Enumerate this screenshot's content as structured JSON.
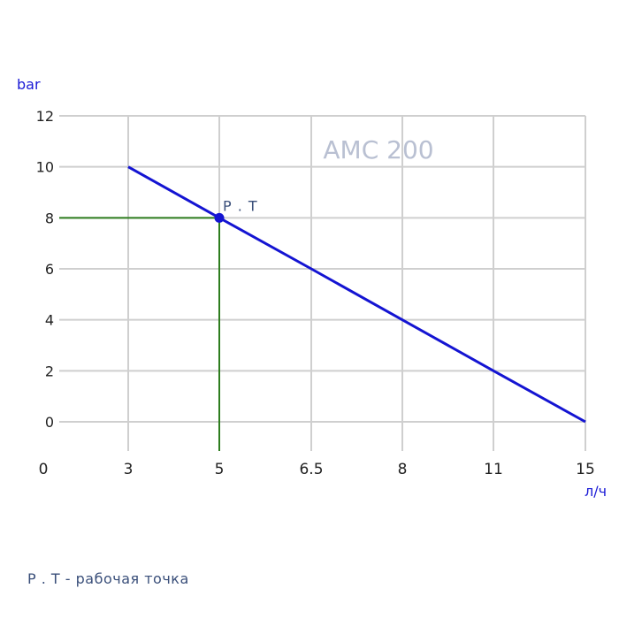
{
  "chart_data": {
    "type": "line",
    "title": "",
    "watermark": "AMC 200",
    "xlabel": "л/ч",
    "ylabel": "bar",
    "x_ticks": [
      "0",
      "3",
      "5",
      "6.5",
      "8",
      "11",
      "15"
    ],
    "y_ticks": [
      "0",
      "2",
      "4",
      "6",
      "8",
      "10",
      "12"
    ],
    "ylim": [
      0,
      12
    ],
    "grid": true,
    "series": [
      {
        "x": [
          "3",
          "5",
          "6.5",
          "8",
          "11",
          "15"
        ],
        "values": [
          10,
          8,
          6,
          4,
          2,
          0
        ],
        "color": "#1414d2"
      }
    ],
    "operating_point": {
      "label": "P . T",
      "x": "5",
      "y": 8,
      "guide_color": "#2e7d1e",
      "color": "#1414d2"
    }
  },
  "footnote": "P . T - рабочая точка"
}
